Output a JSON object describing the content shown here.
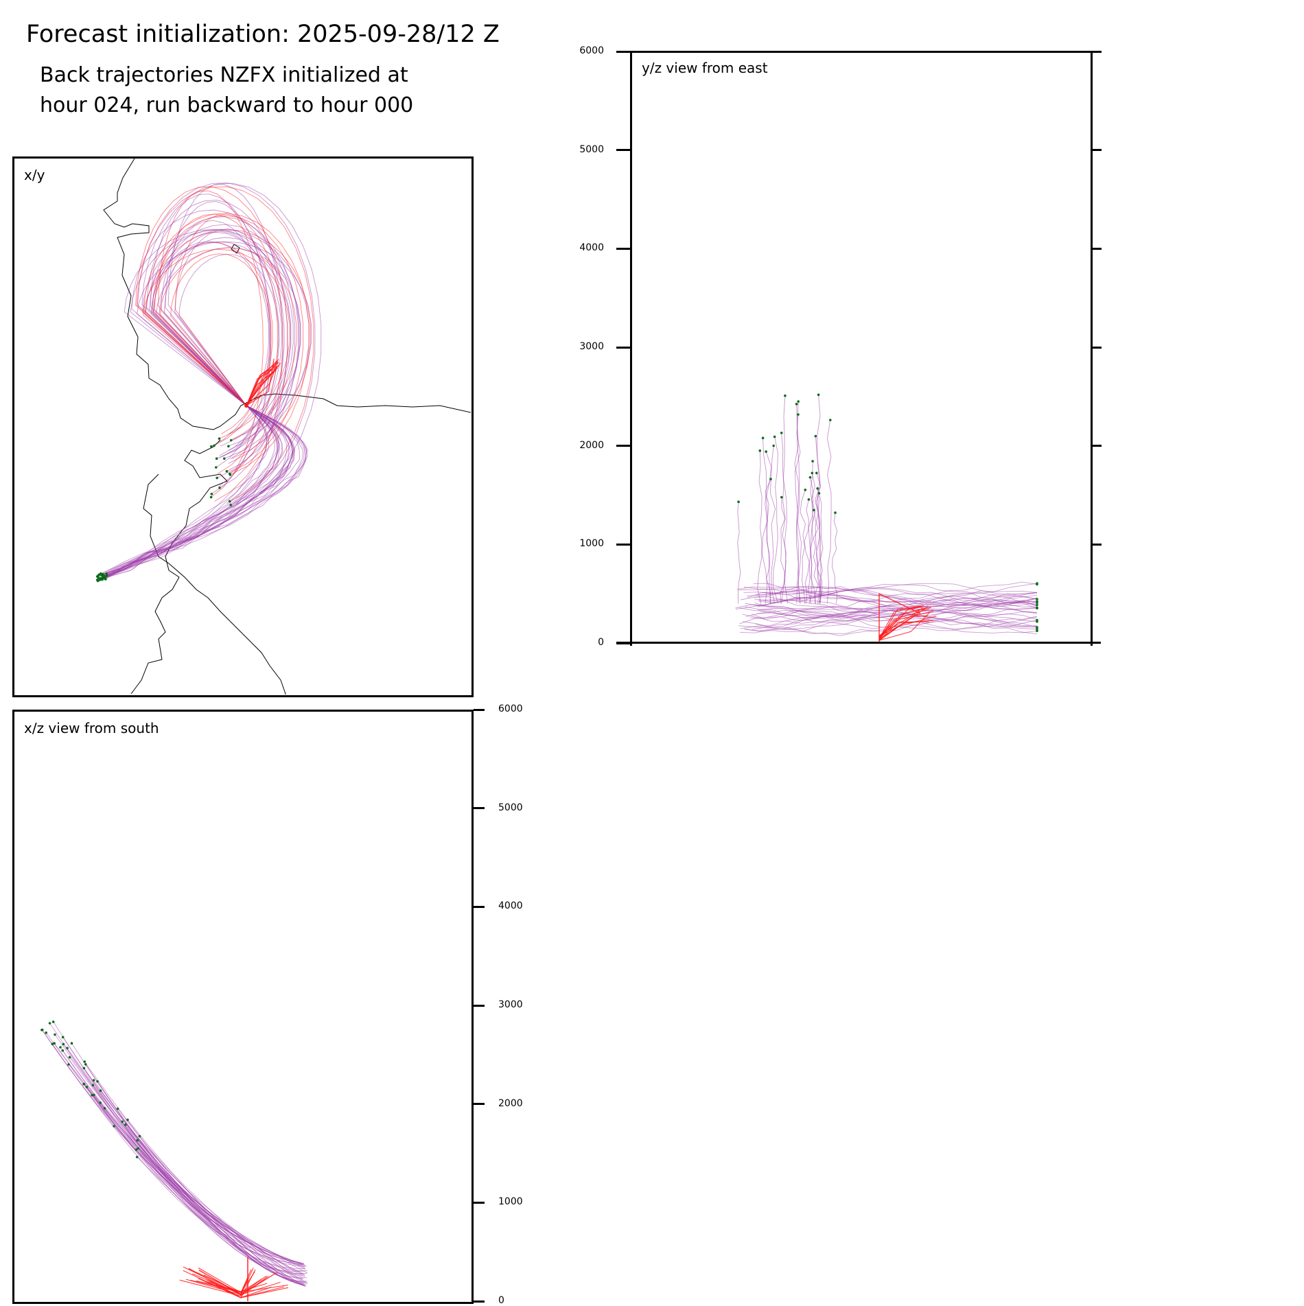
{
  "figure": {
    "title": "Forecast initialization: 2025-09-28/12 Z",
    "subtitle_line1": "Back trajectories NZFX initialized at",
    "subtitle_line2": "hour 024, run backward to hour 000"
  },
  "colors": {
    "trajectory_main": "#9b3aa8",
    "trajectory_start": "#ff1a1a",
    "endpoint_marker": "#0a6b1a",
    "coastline": "#000000"
  },
  "chart_data": [
    {
      "type": "line",
      "id": "xy",
      "title": "x/y",
      "description_units": "map plan view (no axis units shown)",
      "series": [
        {
          "name": "trajectories",
          "count_approx": 60
        },
        {
          "name": "release point",
          "count_approx": 1
        }
      ]
    },
    {
      "type": "line",
      "id": "xz",
      "title": "x/z view from south",
      "ylabel": "",
      "ylim": [
        0,
        6000
      ],
      "yticks": [
        "0",
        "1000",
        "2000",
        "3000",
        "4000",
        "5000",
        "6000"
      ]
    },
    {
      "type": "line",
      "id": "yz",
      "title": "y/z view from east",
      "ylabel": "",
      "ylim": [
        0,
        6000
      ],
      "yticks": [
        "0",
        "1000",
        "2000",
        "3000",
        "4000",
        "5000",
        "6000"
      ]
    }
  ]
}
